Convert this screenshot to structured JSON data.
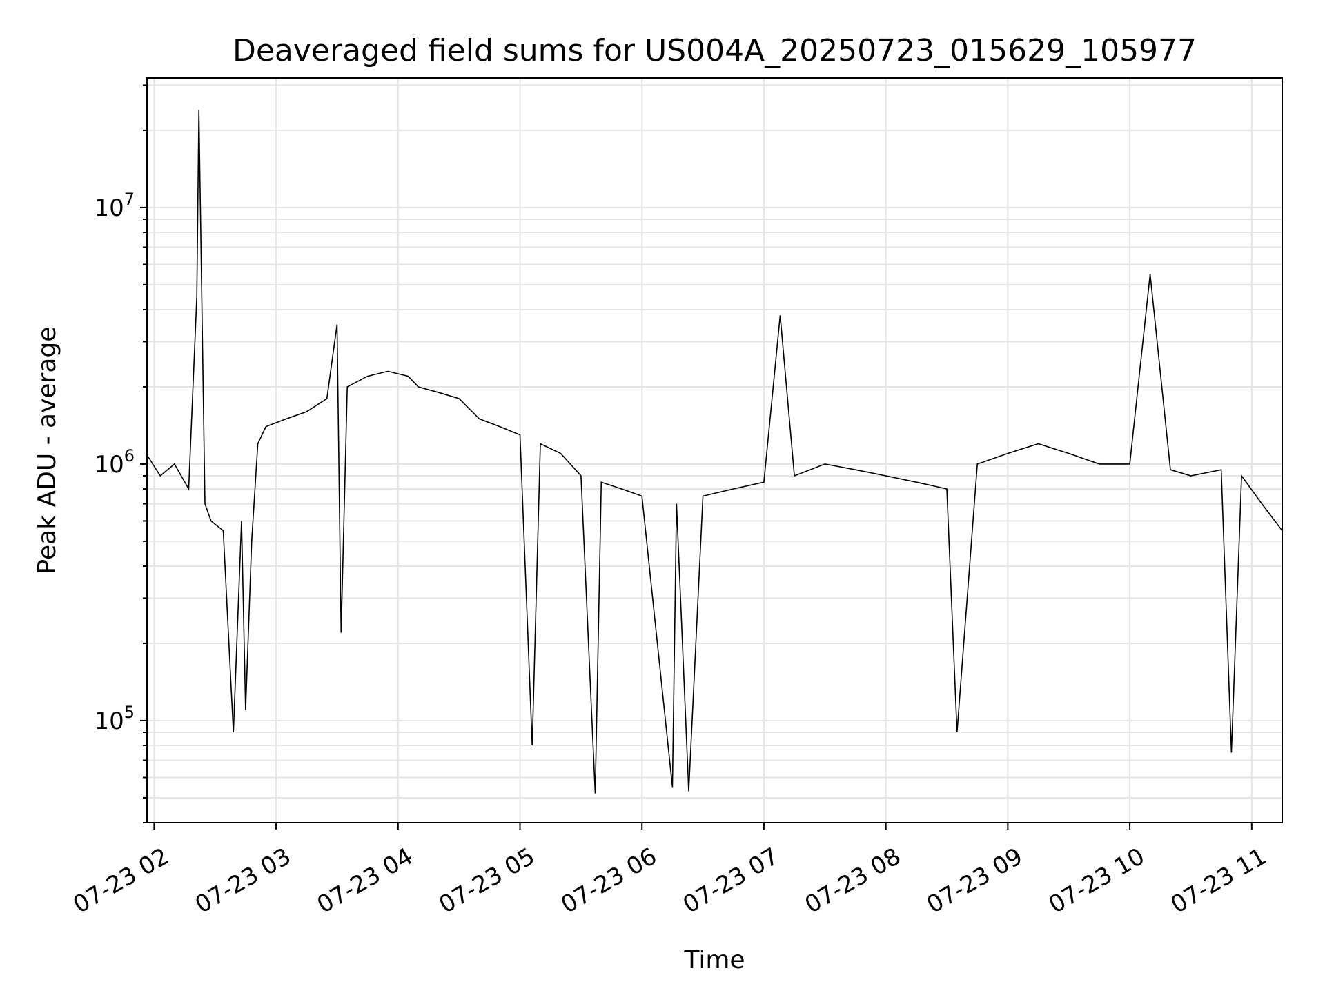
{
  "chart_data": {
    "type": "line",
    "title": "Deaveraged field sums for US004A_20250723_015629_105977",
    "xlabel": "Time",
    "ylabel": "Peak ADU - average",
    "yscale": "log",
    "ylim": [
      40000,
      32000000
    ],
    "xlim": [
      "2025-07-23 01:56:29",
      "2025-07-23 11:15:00"
    ],
    "grid": true,
    "line_color": "#000000",
    "grid_color": "#e5e5e5",
    "x_ticks": [
      {
        "value": "2025-07-23 02:00",
        "label": "07-23 02"
      },
      {
        "value": "2025-07-23 03:00",
        "label": "07-23 03"
      },
      {
        "value": "2025-07-23 04:00",
        "label": "07-23 04"
      },
      {
        "value": "2025-07-23 05:00",
        "label": "07-23 05"
      },
      {
        "value": "2025-07-23 06:00",
        "label": "07-23 06"
      },
      {
        "value": "2025-07-23 07:00",
        "label": "07-23 07"
      },
      {
        "value": "2025-07-23 08:00",
        "label": "07-23 08"
      },
      {
        "value": "2025-07-23 09:00",
        "label": "07-23 09"
      },
      {
        "value": "2025-07-23 10:00",
        "label": "07-23 10"
      },
      {
        "value": "2025-07-23 11:00",
        "label": "07-23 11"
      }
    ],
    "y_ticks": [
      {
        "value": 100000,
        "base": "10",
        "exp": "5"
      },
      {
        "value": 1000000,
        "base": "10",
        "exp": "6"
      },
      {
        "value": 10000000,
        "base": "10",
        "exp": "7"
      }
    ],
    "series": [
      {
        "x": [
          "2025-07-23 01:56",
          "2025-07-23 02:03",
          "2025-07-23 02:10",
          "2025-07-23 02:17",
          "2025-07-23 02:21",
          "2025-07-23 02:22",
          "2025-07-23 02:25",
          "2025-07-23 02:28",
          "2025-07-23 02:34",
          "2025-07-23 02:39",
          "2025-07-23 02:43",
          "2025-07-23 02:45",
          "2025-07-23 02:48",
          "2025-07-23 02:51",
          "2025-07-23 02:55",
          "2025-07-23 03:05",
          "2025-07-23 03:15",
          "2025-07-23 03:25",
          "2025-07-23 03:30",
          "2025-07-23 03:32",
          "2025-07-23 03:35",
          "2025-07-23 03:45",
          "2025-07-23 03:55",
          "2025-07-23 04:05",
          "2025-07-23 04:10",
          "2025-07-23 04:20",
          "2025-07-23 04:30",
          "2025-07-23 04:40",
          "2025-07-23 04:50",
          "2025-07-23 05:00",
          "2025-07-23 05:06",
          "2025-07-23 05:10",
          "2025-07-23 05:20",
          "2025-07-23 05:30",
          "2025-07-23 05:37",
          "2025-07-23 05:40",
          "2025-07-23 05:50",
          "2025-07-23 06:00",
          "2025-07-23 06:15",
          "2025-07-23 06:17",
          "2025-07-23 06:23",
          "2025-07-23 06:30",
          "2025-07-23 06:45",
          "2025-07-23 07:00",
          "2025-07-23 07:08",
          "2025-07-23 07:15",
          "2025-07-23 07:30",
          "2025-07-23 07:45",
          "2025-07-23 08:00",
          "2025-07-23 08:15",
          "2025-07-23 08:30",
          "2025-07-23 08:35",
          "2025-07-23 08:45",
          "2025-07-23 09:00",
          "2025-07-23 09:15",
          "2025-07-23 09:30",
          "2025-07-23 09:45",
          "2025-07-23 10:00",
          "2025-07-23 10:10",
          "2025-07-23 10:20",
          "2025-07-23 10:30",
          "2025-07-23 10:45",
          "2025-07-23 10:50",
          "2025-07-23 10:55",
          "2025-07-23 11:05",
          "2025-07-23 11:15"
        ],
        "y": [
          1100000,
          900000,
          1000000,
          800000,
          4500000,
          24000000,
          700000,
          600000,
          550000,
          90000,
          600000,
          110000,
          500000,
          1200000,
          1400000,
          1500000,
          1600000,
          1800000,
          3500000,
          220000,
          2000000,
          2200000,
          2300000,
          2200000,
          2000000,
          1900000,
          1800000,
          1500000,
          1400000,
          1300000,
          80000,
          1200000,
          1100000,
          900000,
          52000,
          850000,
          800000,
          750000,
          55000,
          700000,
          53000,
          750000,
          800000,
          850000,
          3800000,
          900000,
          1000000,
          950000,
          900000,
          850000,
          800000,
          90000,
          1000000,
          1100000,
          1200000,
          1100000,
          1000000,
          1000000,
          5500000,
          950000,
          900000,
          950000,
          75000,
          900000,
          700000,
          550000
        ]
      }
    ]
  }
}
